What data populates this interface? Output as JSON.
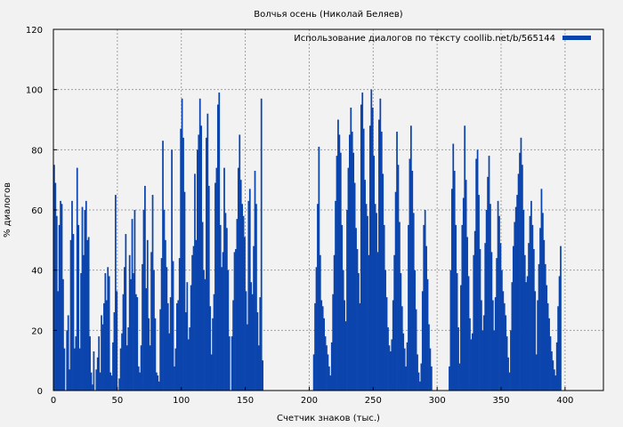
{
  "chart_data": {
    "type": "bar",
    "title": "Волчья осень (Николай Беляев)",
    "xlabel": "Счетчик знаков (тыс.)",
    "ylabel": "% диалогов",
    "xlim": [
      0,
      430
    ],
    "ylim": [
      0,
      120
    ],
    "xticks": [
      0,
      50,
      100,
      150,
      200,
      250,
      300,
      350,
      400
    ],
    "yticks": [
      0,
      20,
      40,
      60,
      80,
      100,
      120
    ],
    "grid": true,
    "legend_position": "top-right",
    "series": [
      {
        "name": "Использование диалогов по тексту coollib.net/b/565144",
        "color": "#0a44ac",
        "bin_width": 1,
        "x_start": 0,
        "values": [
          75,
          69,
          58,
          33,
          55,
          63,
          62,
          37,
          14,
          0,
          20,
          25,
          7,
          50,
          63,
          52,
          14,
          18,
          74,
          55,
          14,
          39,
          61,
          45,
          60,
          63,
          50,
          51,
          18,
          6,
          2,
          13,
          0,
          7,
          11,
          18,
          6,
          25,
          22,
          29,
          39,
          30,
          41,
          38,
          6,
          5,
          16,
          26,
          65,
          33,
          0,
          4,
          14,
          19,
          32,
          41,
          52,
          15,
          21,
          45,
          37,
          57,
          39,
          60,
          32,
          31,
          8,
          6,
          15,
          42,
          60,
          68,
          34,
          50,
          24,
          15,
          46,
          65,
          40,
          24,
          6,
          5,
          3,
          27,
          44,
          83,
          60,
          50,
          41,
          29,
          19,
          31,
          80,
          43,
          8,
          14,
          29,
          30,
          44,
          87,
          97,
          84,
          66,
          26,
          36,
          17,
          21,
          35,
          45,
          48,
          72,
          50,
          80,
          85,
          97,
          88,
          56,
          40,
          37,
          84,
          92,
          68,
          28,
          12,
          24,
          32,
          69,
          74,
          95,
          99,
          55,
          41,
          46,
          74,
          59,
          54,
          40,
          18,
          0,
          18,
          30,
          46,
          47,
          57,
          74,
          85,
          70,
          62,
          58,
          51,
          33,
          22,
          63,
          67,
          36,
          32,
          48,
          73,
          62,
          26,
          15,
          31,
          97,
          10,
          0,
          0,
          0,
          0,
          0,
          0,
          0,
          0,
          0,
          0,
          0,
          0,
          0,
          0,
          0,
          0,
          0,
          0,
          0,
          0,
          0,
          0,
          0,
          0,
          0,
          0,
          0,
          0,
          0,
          0,
          0,
          0,
          0,
          0,
          0,
          0,
          0,
          0,
          0,
          12,
          29,
          41,
          62,
          81,
          45,
          30,
          28,
          24,
          18,
          15,
          12,
          8,
          5,
          16,
          32,
          45,
          63,
          78,
          90,
          85,
          79,
          55,
          40,
          30,
          23,
          60,
          74,
          85,
          94,
          86,
          79,
          69,
          54,
          47,
          39,
          29,
          95,
          99,
          87,
          70,
          62,
          58,
          45,
          88,
          100,
          94,
          78,
          62,
          59,
          46,
          90,
          97,
          86,
          72,
          55,
          40,
          31,
          21,
          15,
          13,
          17,
          30,
          45,
          66,
          86,
          75,
          56,
          39,
          28,
          19,
          14,
          8,
          16,
          55,
          77,
          88,
          73,
          59,
          40,
          27,
          12,
          6,
          3,
          9,
          33,
          55,
          60,
          48,
          37,
          22,
          14,
          8,
          0,
          0,
          0,
          0,
          0,
          0,
          0,
          0,
          0,
          0,
          0,
          0,
          0,
          8,
          40,
          67,
          82,
          73,
          55,
          39,
          21,
          9,
          35,
          55,
          64,
          88,
          70,
          51,
          38,
          24,
          17,
          19,
          45,
          53,
          77,
          80,
          65,
          47,
          30,
          20,
          25,
          49,
          60,
          71,
          78,
          62,
          46,
          30,
          20,
          31,
          44,
          63,
          58,
          49,
          40,
          33,
          29,
          25,
          18,
          11,
          6,
          20,
          36,
          48,
          56,
          61,
          65,
          72,
          79,
          84,
          75,
          60,
          45,
          36,
          38,
          49,
          58,
          63,
          55,
          47,
          33,
          12,
          30,
          42,
          54,
          67,
          59,
          50,
          42,
          35,
          29,
          24,
          18,
          13,
          10,
          7,
          5,
          16,
          28,
          38,
          48
        ]
      }
    ]
  }
}
